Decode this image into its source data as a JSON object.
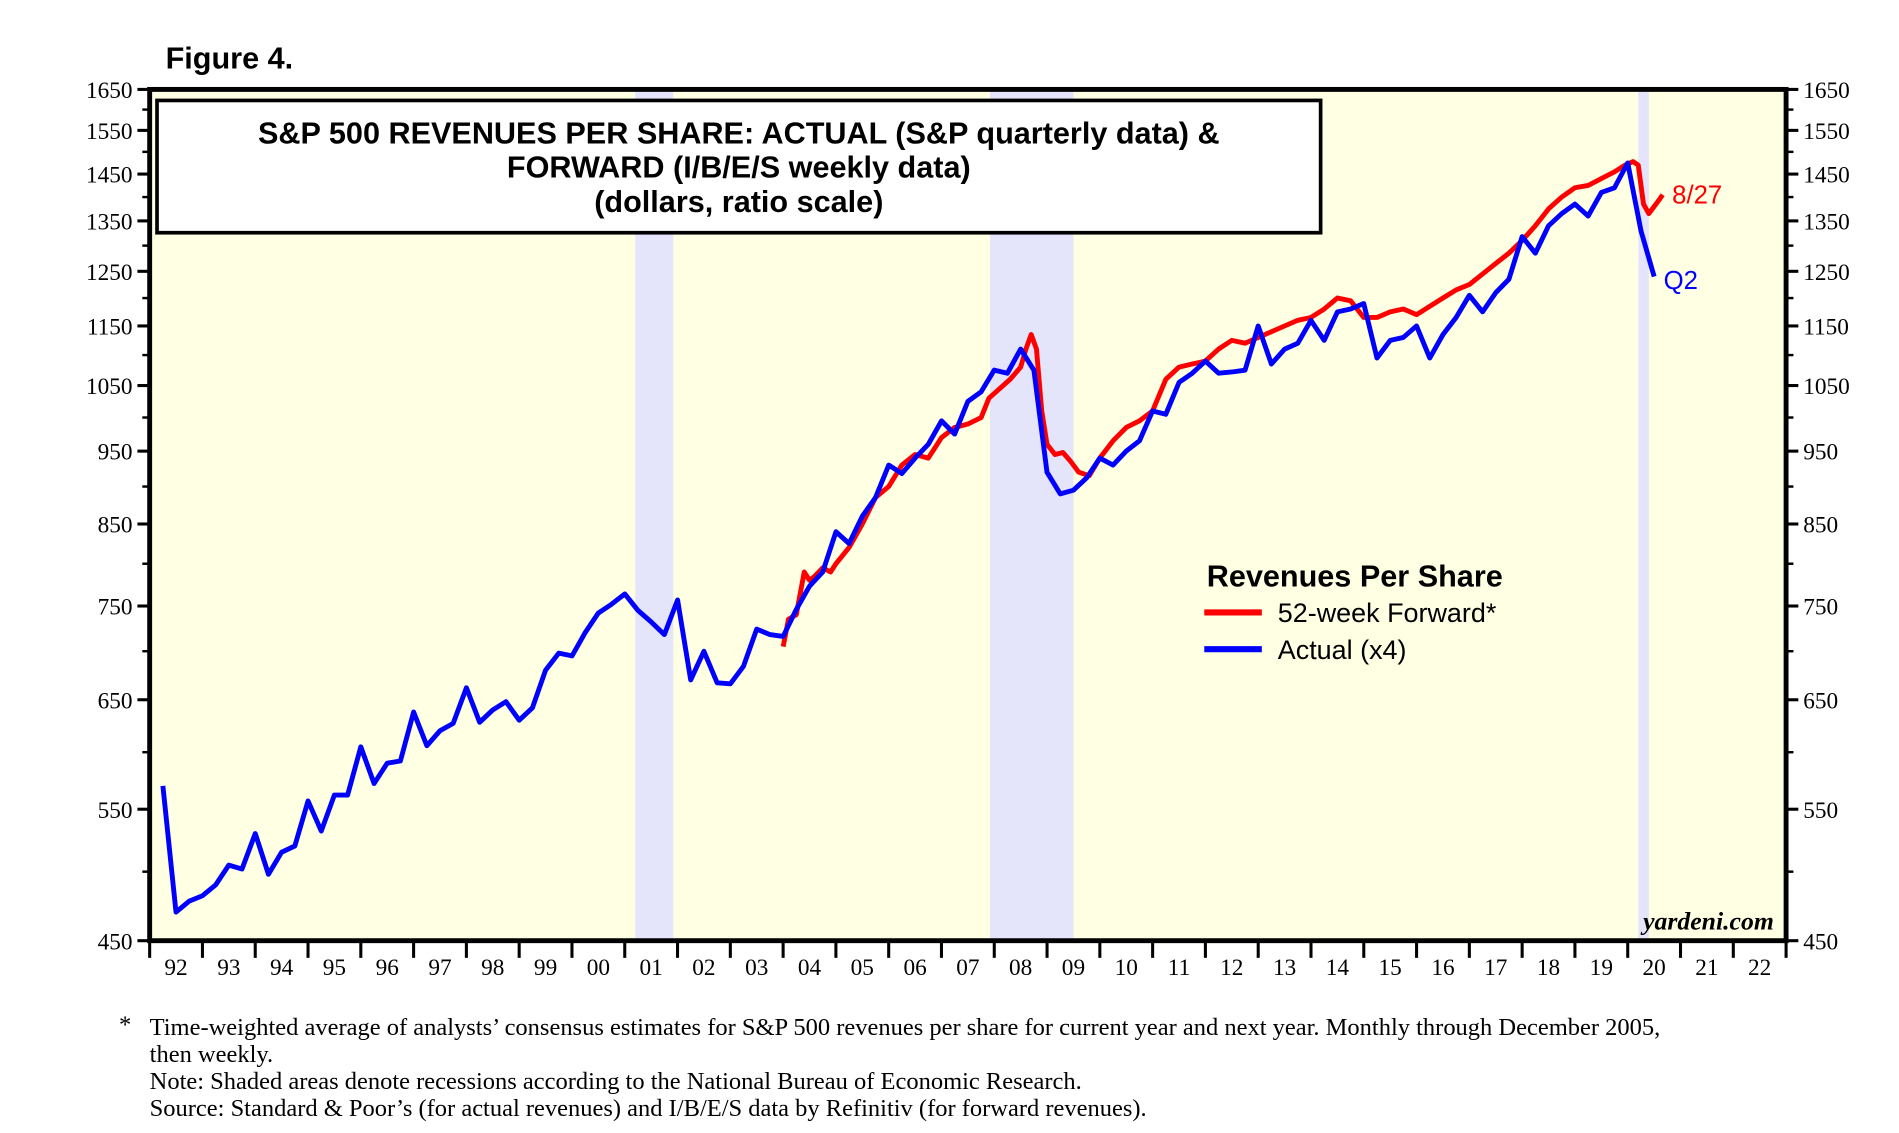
{
  "figure_label": "Figure 4.",
  "watermark": "yardeni.com",
  "footnotes": [
    "*",
    "Time-weighted average of analysts’ consensus estimates for S&P 500 revenues per share for current year and next year. Monthly through December 2005,",
    "then weekly.",
    "Note: Shaded areas denote recessions according to the National Bureau of Economic Research.",
    "Source: Standard & Poor’s (for actual revenues) and I/B/E/S data by Refinitiv (for forward revenues)."
  ],
  "chart_data": {
    "type": "line",
    "title": [
      "S&P 500 REVENUES PER SHARE: ACTUAL (S&P quarterly data) &",
      "FORWARD (I/B/E/S weekly data)",
      "(dollars, ratio scale)"
    ],
    "xlabel": "",
    "ylabel": "",
    "y_scale": "log",
    "ylim": [
      450,
      1650
    ],
    "xlim": [
      1992,
      2023
    ],
    "y_ticks": [
      450,
      550,
      650,
      750,
      850,
      950,
      1050,
      1150,
      1250,
      1350,
      1450,
      1550,
      1650
    ],
    "y_minor_ticks": [
      500,
      600,
      700,
      800,
      900,
      1000,
      1100,
      1200,
      1300,
      1400,
      1500,
      1600
    ],
    "x_tick_labels": [
      "92",
      "93",
      "94",
      "95",
      "96",
      "97",
      "98",
      "99",
      "00",
      "01",
      "02",
      "03",
      "04",
      "05",
      "06",
      "07",
      "08",
      "09",
      "10",
      "11",
      "12",
      "13",
      "14",
      "15",
      "16",
      "17",
      "18",
      "19",
      "20",
      "21",
      "22"
    ],
    "grid": false,
    "legend": {
      "title": "Revenues Per Share",
      "placement": "center-right"
    },
    "recessions": [
      [
        2001.2,
        2001.92
      ],
      [
        2007.92,
        2009.5
      ],
      [
        2020.2,
        2020.4
      ]
    ],
    "colors": {
      "forward": "#ff0000",
      "actual": "#0000ff",
      "background": "#ffffe4",
      "recession": "#e4e4fa"
    },
    "series": [
      {
        "name": "52-week Forward*",
        "end_label": "8/27",
        "x": [
          2004.0,
          2004.1,
          2004.25,
          2004.4,
          2004.5,
          2004.6,
          2004.75,
          2004.9,
          2005.0,
          2005.25,
          2005.5,
          2005.75,
          2006.0,
          2006.25,
          2006.5,
          2006.75,
          2007.0,
          2007.25,
          2007.5,
          2007.75,
          2007.9,
          2008.1,
          2008.3,
          2008.5,
          2008.6,
          2008.7,
          2008.8,
          2008.9,
          2009.0,
          2009.15,
          2009.3,
          2009.45,
          2009.6,
          2009.8,
          2010.0,
          2010.25,
          2010.5,
          2010.75,
          2011.0,
          2011.25,
          2011.5,
          2011.75,
          2012.0,
          2012.25,
          2012.5,
          2012.75,
          2013.0,
          2013.25,
          2013.5,
          2013.75,
          2014.0,
          2014.25,
          2014.5,
          2014.75,
          2015.0,
          2015.25,
          2015.5,
          2015.75,
          2016.0,
          2016.25,
          2016.5,
          2016.75,
          2017.0,
          2017.25,
          2017.5,
          2017.75,
          2018.0,
          2018.25,
          2018.5,
          2018.75,
          2019.0,
          2019.25,
          2019.5,
          2019.75,
          2019.95,
          2020.1,
          2020.2,
          2020.3,
          2020.4,
          2020.5,
          2020.6,
          2020.66
        ],
        "values": [
          705,
          735,
          740,
          790,
          780,
          785,
          795,
          790,
          800,
          820,
          850,
          885,
          900,
          930,
          945,
          940,
          970,
          985,
          990,
          1000,
          1030,
          1045,
          1060,
          1080,
          1110,
          1135,
          1110,
          1010,
          960,
          945,
          948,
          935,
          920,
          915,
          940,
          965,
          985,
          995,
          1010,
          1060,
          1080,
          1085,
          1090,
          1110,
          1125,
          1120,
          1130,
          1140,
          1150,
          1160,
          1165,
          1180,
          1200,
          1195,
          1165,
          1165,
          1175,
          1180,
          1170,
          1185,
          1200,
          1215,
          1225,
          1245,
          1265,
          1285,
          1310,
          1340,
          1375,
          1400,
          1420,
          1425,
          1440,
          1455,
          1470,
          1478,
          1470,
          1385,
          1365,
          1380,
          1395,
          1405
        ]
      },
      {
        "name": "Actual (x4)",
        "end_label": "Q2",
        "x_start": 1992.25,
        "x_step": 0.25,
        "values": [
          570,
          470,
          478,
          482,
          490,
          505,
          502,
          530,
          498,
          515,
          520,
          557,
          532,
          562,
          562,
          605,
          572,
          590,
          592,
          638,
          606,
          620,
          627,
          662,
          628,
          640,
          648,
          630,
          642,
          680,
          698,
          695,
          720,
          742,
          752,
          764,
          745,
          732,
          718,
          757,
          670,
          700,
          667,
          666,
          684,
          724,
          718,
          716,
          746,
          773,
          790,
          840,
          825,
          860,
          885,
          930,
          918,
          940,
          960,
          995,
          975,
          1025,
          1040,
          1075,
          1070,
          1110,
          1075,
          920,
          890,
          895,
          912,
          940,
          930,
          950,
          965,
          1010,
          1005,
          1055,
          1070,
          1090,
          1070,
          1072,
          1075,
          1150,
          1085,
          1110,
          1120,
          1160,
          1125,
          1175,
          1180,
          1190,
          1095,
          1125,
          1130,
          1150,
          1095,
          1135,
          1165,
          1205,
          1175,
          1210,
          1235,
          1318,
          1285,
          1340,
          1365,
          1385,
          1360,
          1410,
          1420,
          1475,
          1330,
          1240
        ]
      }
    ]
  }
}
